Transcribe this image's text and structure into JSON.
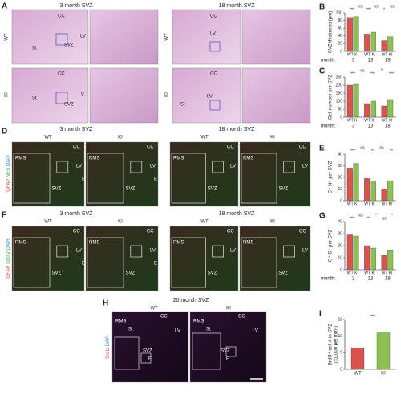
{
  "figure": {
    "A": {
      "label": "A",
      "title_left": "3 month SVZ",
      "title_right": "18 month SVZ",
      "row_wt": "WT",
      "row_ki": "KI",
      "cc": "CC",
      "lv": "LV",
      "svz": "SVZ",
      "st": "St"
    },
    "D": {
      "label": "D",
      "title_left": "3 month SVZ",
      "title_right": "18 month SVZ",
      "wt": "WT",
      "ki": "KI",
      "rms": "RMS",
      "cc": "CC",
      "lv": "LV",
      "svz": "SVZ",
      "e": "E",
      "stain": [
        "GFAP",
        "NES",
        "DAPI"
      ]
    },
    "F": {
      "label": "F",
      "title_left": "3 month SVZ",
      "title_right": "18 month SVZ",
      "wt": "WT",
      "ki": "KI",
      "rms": "RMS",
      "cc": "CC",
      "lv": "LV",
      "svz": "SVZ",
      "e": "E",
      "stain": [
        "GFAP",
        "SOX2",
        "DAPI"
      ]
    },
    "H": {
      "label": "H",
      "title": "20 month SVZ",
      "wt": "WT",
      "ki": "KI",
      "rms": "RMS",
      "cc": "CC",
      "st": "St",
      "svz": "SVZ",
      "lv": "LV",
      "e": "E",
      "stain": [
        "BrdU",
        "DAPI"
      ]
    }
  },
  "chart_data": [
    {
      "type": "bar",
      "label": "B",
      "ylabel": [
        "SVZ thickness (μm)"
      ],
      "xlabel": "month:",
      "categories": [
        "3",
        "13",
        "18"
      ],
      "series": [
        {
          "name": "WT",
          "color": "#d9534f",
          "values": [
            88,
            45,
            28
          ]
        },
        {
          "name": "KI",
          "color": "#8cc152",
          "values": [
            90,
            50,
            38
          ]
        }
      ],
      "ylim": [
        0,
        100
      ],
      "yticks": [
        0,
        20,
        40,
        60,
        80,
        100
      ],
      "annotations": [
        "***",
        "ns",
        "***",
        "ns",
        "*",
        "ns"
      ]
    },
    {
      "type": "bar",
      "label": "C",
      "ylabel": [
        "Cell number per SVZ"
      ],
      "xlabel": "month:",
      "categories": [
        "3",
        "13",
        "18"
      ],
      "series": [
        {
          "name": "WT",
          "color": "#d9534f",
          "values": [
            200,
            85,
            70
          ]
        },
        {
          "name": "KI",
          "color": "#8cc152",
          "values": [
            205,
            100,
            110
          ]
        }
      ],
      "ylim": [
        0,
        250
      ],
      "yticks": [
        0,
        50,
        100,
        150,
        200,
        250
      ],
      "annotations": [
        "***",
        "ns",
        "***",
        "*",
        "***"
      ]
    },
    {
      "type": "bar",
      "label": "E",
      "ylabel": [
        "G⁺ N⁺ per SVZ"
      ],
      "categories": [
        "",
        "",
        ""
      ],
      "series": [
        {
          "name": "WT",
          "color": "#d9534f",
          "values": [
            28,
            19,
            10
          ]
        },
        {
          "name": "KI",
          "color": "#8cc152",
          "values": [
            32,
            17,
            17
          ]
        }
      ],
      "ylim": [
        0,
        40
      ],
      "yticks": [
        0,
        10,
        20,
        30,
        40
      ],
      "annotations": [
        "***",
        "ns",
        "**",
        "ns",
        "**"
      ]
    },
    {
      "type": "bar",
      "label": "G",
      "ylabel": [
        "G⁺ S⁺ per SVZ"
      ],
      "xlabel": "month:",
      "categories": [
        "3",
        "13",
        "18"
      ],
      "series": [
        {
          "name": "WT",
          "color": "#d9534f",
          "values": [
            29,
            20,
            12
          ]
        },
        {
          "name": "KI",
          "color": "#8cc152",
          "values": [
            28,
            18,
            16
          ]
        }
      ],
      "ylim": [
        0,
        40
      ],
      "yticks": [
        0,
        10,
        20,
        30,
        40
      ],
      "annotations": [
        "***",
        "ns",
        "**",
        "*",
        "ns",
        "*"
      ]
    },
    {
      "type": "bar",
      "label": "I",
      "ylabel": [
        "BrdU⁺ cell # in SVZ",
        "(x1,000 per mm³)"
      ],
      "categories": [
        "WT",
        "KI"
      ],
      "values": [
        6.5,
        11
      ],
      "colors": [
        "#d9534f",
        "#8cc152"
      ],
      "ylim": [
        0,
        15
      ],
      "yticks": [
        0,
        5,
        10,
        15
      ],
      "annotations": [
        "***"
      ]
    }
  ]
}
